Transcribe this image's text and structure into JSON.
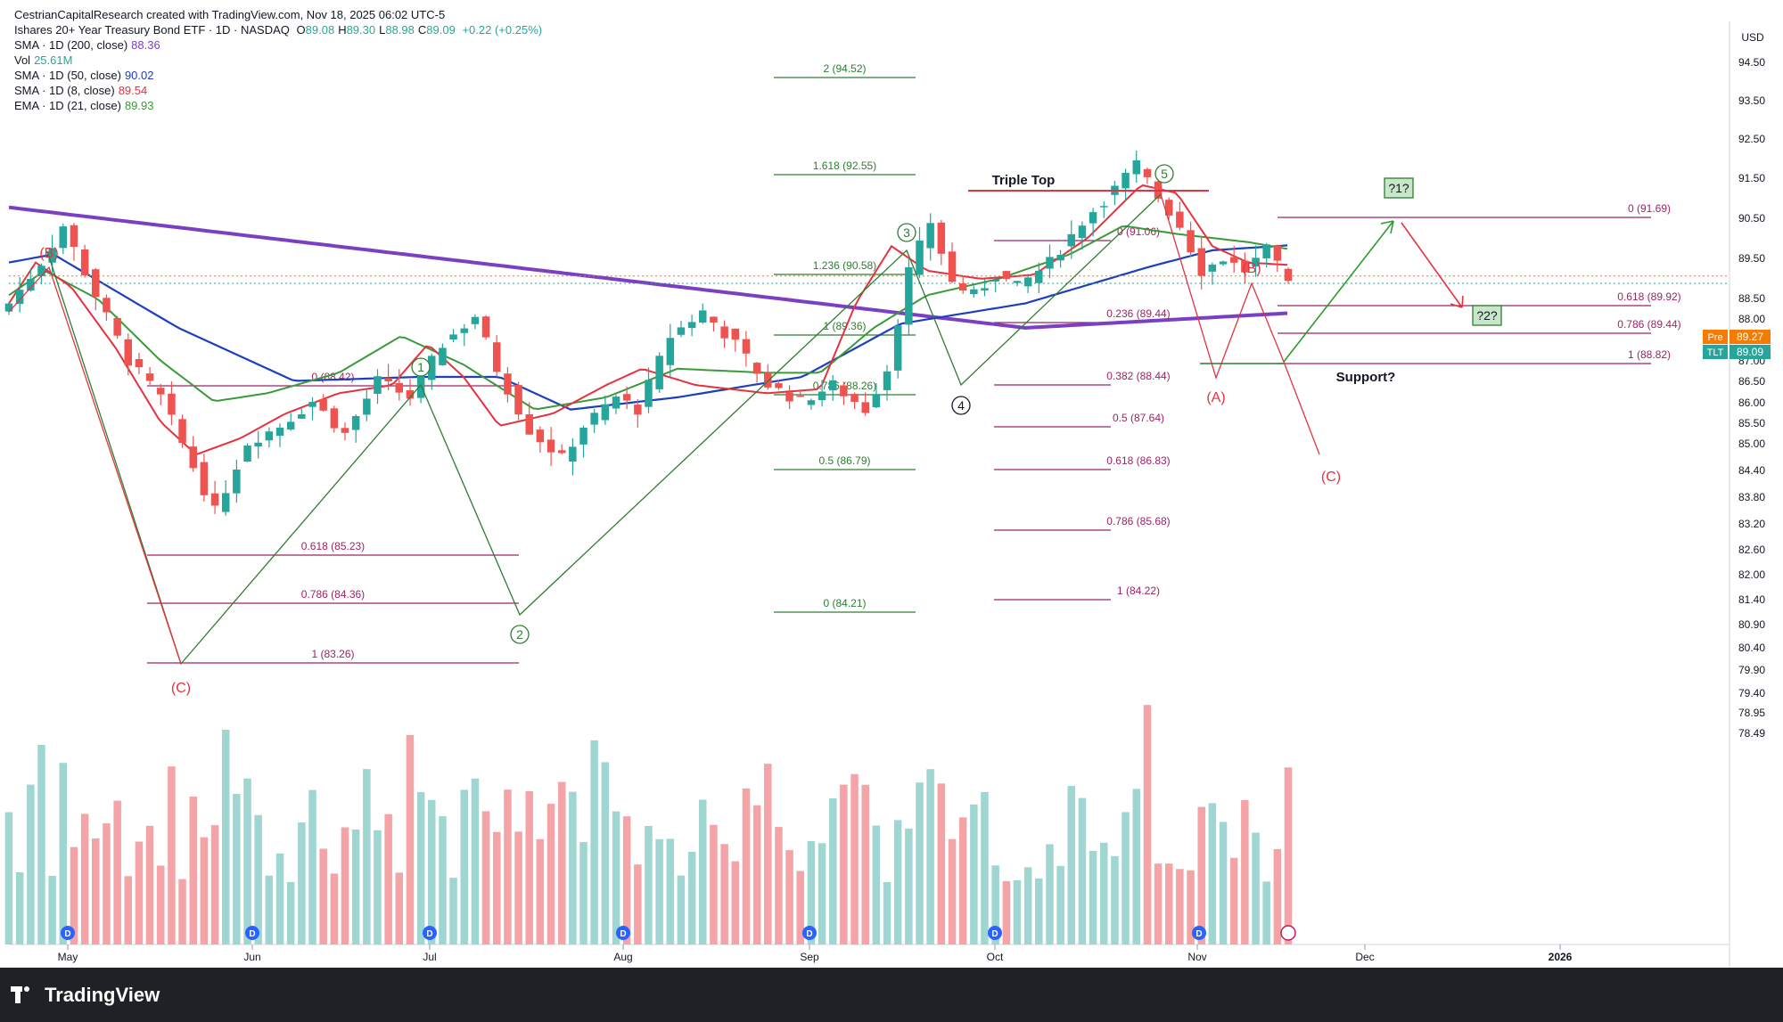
{
  "header": {
    "credit": "CestrianCapitalResearch created with TradingView.com, Nov 18, 2025 06:02 UTC-5",
    "title": "Ishares 20+ Year Treasury Bond ETF · 1D · NASDAQ",
    "ohlc": [
      {
        "k": "O",
        "v": "89.08"
      },
      {
        "k": "H",
        "v": "89.30"
      },
      {
        "k": "L",
        "v": "88.98"
      },
      {
        "k": "C",
        "v": "89.09"
      }
    ],
    "change": "+0.22 (+0.25%)",
    "indicators": [
      {
        "label": "SMA · 1D (200, close)",
        "value": "88.36",
        "color": "#7b3fc4"
      },
      {
        "label": "Vol",
        "value": "25.61M",
        "color": "#26a69a"
      },
      {
        "label": "SMA · 1D (50, close)",
        "value": "90.02",
        "color": "#1d3fbf"
      },
      {
        "label": "SMA · 1D (8, close)",
        "value": "89.54",
        "color": "#e5323e"
      },
      {
        "label": "EMA · 1D (21, close)",
        "value": "89.93",
        "color": "#3a9a3a"
      }
    ]
  },
  "chart_data": {
    "type": "candlestick",
    "symbol": "TLT",
    "currency": "USD",
    "ylim": [
      78.3,
      95.0
    ],
    "y_ticks": [
      "94.50",
      "93.50",
      "92.50",
      "91.50",
      "90.50",
      "89.50",
      "88.50",
      "88.00",
      "87.50",
      "87.00",
      "86.50",
      "86.00",
      "85.50",
      "85.00",
      "84.40",
      "83.80",
      "83.20",
      "82.60",
      "82.00",
      "81.40",
      "80.90",
      "80.40",
      "79.90",
      "79.40",
      "78.95",
      "78.49"
    ],
    "x_months": [
      "May",
      "Jun",
      "Jul",
      "Aug",
      "Sep",
      "Oct",
      "Nov",
      "Dec",
      "2026"
    ],
    "bars_count": 95,
    "last_price": {
      "label": "TLT",
      "value": "89.09",
      "color": "#26a69a"
    },
    "pre_price": {
      "label": "Pre",
      "value": "89.27",
      "color": "#f57c00"
    },
    "colors": {
      "up": "#26a69a",
      "down": "#ef5350",
      "vol_up": "#9fd6d2",
      "vol_down": "#f4a3a6",
      "fib": "#9c2464",
      "wave_green": "#2e7d32",
      "wave_red": "#e5323e",
      "sma200": "#7b3fc4",
      "sma50": "#1d3fbf",
      "sma8": "#e5323e",
      "ema21": "#3a9a3a"
    },
    "waves": {
      "impulse": [
        "1",
        "2",
        "3",
        "4",
        "5"
      ],
      "correction_1": [
        "(B)",
        "(C)"
      ],
      "correction_2": [
        "(A)",
        "(B)",
        "(C)"
      ]
    },
    "fib_sets": [
      {
        "levels": [
          {
            "ratio": "0",
            "value": "88.42"
          },
          {
            "ratio": "0.618",
            "value": "85.23"
          },
          {
            "ratio": "0.786",
            "value": "84.36"
          },
          {
            "ratio": "1",
            "value": "83.26"
          }
        ]
      },
      {
        "levels": [
          {
            "ratio": "2",
            "value": "94.52"
          },
          {
            "ratio": "1.618",
            "value": "92.55"
          },
          {
            "ratio": "1.236",
            "value": "90.58"
          },
          {
            "ratio": "1",
            "value": "89.36"
          },
          {
            "ratio": "0.786",
            "value": "88.26"
          },
          {
            "ratio": "0.5",
            "value": "86.79"
          },
          {
            "ratio": "0",
            "value": "84.21"
          }
        ]
      },
      {
        "levels": [
          {
            "ratio": "0",
            "value": "91.06"
          },
          {
            "ratio": "0.236",
            "value": "89.44"
          },
          {
            "ratio": "0.382",
            "value": "88.44"
          },
          {
            "ratio": "0.5",
            "value": "87.64"
          },
          {
            "ratio": "0.618",
            "value": "86.83"
          },
          {
            "ratio": "0.786",
            "value": "85.68"
          },
          {
            "ratio": "1",
            "value": "84.22"
          }
        ]
      },
      {
        "levels": [
          {
            "ratio": "0",
            "value": "91.69"
          },
          {
            "ratio": "0.618",
            "value": "89.92"
          },
          {
            "ratio": "0.786",
            "value": "89.44"
          },
          {
            "ratio": "1",
            "value": "88.82"
          }
        ]
      }
    ],
    "annotations": [
      "Triple Top",
      "Support?",
      "?1?",
      "?2?"
    ],
    "dividend_marker": "D"
  }
}
